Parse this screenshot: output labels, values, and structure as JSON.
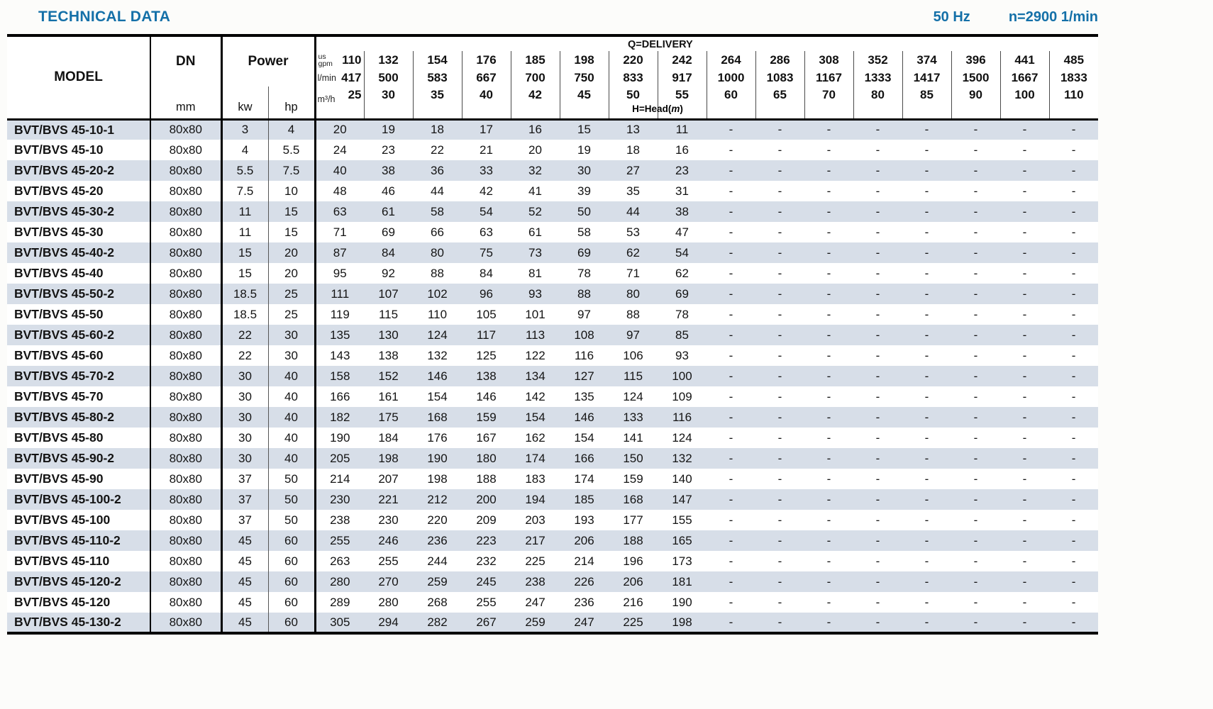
{
  "page": {
    "title": "TECHNICAL DATA",
    "frequency": "50 Hz",
    "speed": "n=2900 1/min"
  },
  "table": {
    "headers": {
      "model": "MODEL",
      "dn": "DN",
      "dn_unit": "mm",
      "power": "Power",
      "kw": "kw",
      "hp": "hp",
      "delivery": "Q=DELIVERY",
      "head_label": {
        "prefix": "H=Head(",
        "unit": "m",
        "suffix": ")"
      },
      "gpm_unit_lines": [
        "us",
        "gpm"
      ],
      "lmin_unit": "l/min",
      "m3h_unit": "m³/h",
      "gpm_values": [
        "110",
        "132",
        "154",
        "176",
        "185",
        "198",
        "220",
        "242",
        "264",
        "286",
        "308",
        "352",
        "374",
        "396",
        "441",
        "485"
      ],
      "lmin_values": [
        "417",
        "500",
        "583",
        "667",
        "700",
        "750",
        "833",
        "917",
        "1000",
        "1083",
        "1167",
        "1333",
        "1417",
        "1500",
        "1667",
        "1833"
      ],
      "m3h_values": [
        "25",
        "30",
        "35",
        "40",
        "42",
        "45",
        "50",
        "55",
        "60",
        "65",
        "70",
        "80",
        "85",
        "90",
        "100",
        "110"
      ]
    },
    "rows": [
      {
        "model": "BVT/BVS 45-10-1",
        "dn": "80x80",
        "kw": "3",
        "hp": "4",
        "values": [
          "20",
          "19",
          "18",
          "17",
          "16",
          "15",
          "13",
          "11",
          "-",
          "-",
          "-",
          "-",
          "-",
          "-",
          "-",
          "-"
        ]
      },
      {
        "model": "BVT/BVS 45-10",
        "dn": "80x80",
        "kw": "4",
        "hp": "5.5",
        "values": [
          "24",
          "23",
          "22",
          "21",
          "20",
          "19",
          "18",
          "16",
          "-",
          "-",
          "-",
          "-",
          "-",
          "-",
          "-",
          "-"
        ]
      },
      {
        "model": "BVT/BVS 45-20-2",
        "dn": "80x80",
        "kw": "5.5",
        "hp": "7.5",
        "values": [
          "40",
          "38",
          "36",
          "33",
          "32",
          "30",
          "27",
          "23",
          "-",
          "-",
          "-",
          "-",
          "-",
          "-",
          "-",
          "-"
        ]
      },
      {
        "model": "BVT/BVS 45-20",
        "dn": "80x80",
        "kw": "7.5",
        "hp": "10",
        "values": [
          "48",
          "46",
          "44",
          "42",
          "41",
          "39",
          "35",
          "31",
          "-",
          "-",
          "-",
          "-",
          "-",
          "-",
          "-",
          "-"
        ]
      },
      {
        "model": "BVT/BVS 45-30-2",
        "dn": "80x80",
        "kw": "11",
        "hp": "15",
        "values": [
          "63",
          "61",
          "58",
          "54",
          "52",
          "50",
          "44",
          "38",
          "-",
          "-",
          "-",
          "-",
          "-",
          "-",
          "-",
          "-"
        ]
      },
      {
        "model": "BVT/BVS 45-30",
        "dn": "80x80",
        "kw": "11",
        "hp": "15",
        "values": [
          "71",
          "69",
          "66",
          "63",
          "61",
          "58",
          "53",
          "47",
          "-",
          "-",
          "-",
          "-",
          "-",
          "-",
          "-",
          "-"
        ]
      },
      {
        "model": "BVT/BVS 45-40-2",
        "dn": "80x80",
        "kw": "15",
        "hp": "20",
        "values": [
          "87",
          "84",
          "80",
          "75",
          "73",
          "69",
          "62",
          "54",
          "-",
          "-",
          "-",
          "-",
          "-",
          "-",
          "-",
          "-"
        ]
      },
      {
        "model": "BVT/BVS 45-40",
        "dn": "80x80",
        "kw": "15",
        "hp": "20",
        "values": [
          "95",
          "92",
          "88",
          "84",
          "81",
          "78",
          "71",
          "62",
          "-",
          "-",
          "-",
          "-",
          "-",
          "-",
          "-",
          "-"
        ]
      },
      {
        "model": "BVT/BVS 45-50-2",
        "dn": "80x80",
        "kw": "18.5",
        "hp": "25",
        "values": [
          "111",
          "107",
          "102",
          "96",
          "93",
          "88",
          "80",
          "69",
          "-",
          "-",
          "-",
          "-",
          "-",
          "-",
          "-",
          "-"
        ]
      },
      {
        "model": "BVT/BVS 45-50",
        "dn": "80x80",
        "kw": "18.5",
        "hp": "25",
        "values": [
          "119",
          "115",
          "110",
          "105",
          "101",
          "97",
          "88",
          "78",
          "-",
          "-",
          "-",
          "-",
          "-",
          "-",
          "-",
          "-"
        ]
      },
      {
        "model": "BVT/BVS 45-60-2",
        "dn": "80x80",
        "kw": "22",
        "hp": "30",
        "values": [
          "135",
          "130",
          "124",
          "117",
          "113",
          "108",
          "97",
          "85",
          "-",
          "-",
          "-",
          "-",
          "-",
          "-",
          "-",
          "-"
        ]
      },
      {
        "model": "BVT/BVS 45-60",
        "dn": "80x80",
        "kw": "22",
        "hp": "30",
        "values": [
          "143",
          "138",
          "132",
          "125",
          "122",
          "116",
          "106",
          "93",
          "-",
          "-",
          "-",
          "-",
          "-",
          "-",
          "-",
          "-"
        ]
      },
      {
        "model": "BVT/BVS 45-70-2",
        "dn": "80x80",
        "kw": "30",
        "hp": "40",
        "values": [
          "158",
          "152",
          "146",
          "138",
          "134",
          "127",
          "115",
          "100",
          "-",
          "-",
          "-",
          "-",
          "-",
          "-",
          "-",
          "-"
        ]
      },
      {
        "model": "BVT/BVS 45-70",
        "dn": "80x80",
        "kw": "30",
        "hp": "40",
        "values": [
          "166",
          "161",
          "154",
          "146",
          "142",
          "135",
          "124",
          "109",
          "-",
          "-",
          "-",
          "-",
          "-",
          "-",
          "-",
          "-"
        ]
      },
      {
        "model": "BVT/BVS 45-80-2",
        "dn": "80x80",
        "kw": "30",
        "hp": "40",
        "values": [
          "182",
          "175",
          "168",
          "159",
          "154",
          "146",
          "133",
          "116",
          "-",
          "-",
          "-",
          "-",
          "-",
          "-",
          "-",
          "-"
        ]
      },
      {
        "model": "BVT/BVS 45-80",
        "dn": "80x80",
        "kw": "30",
        "hp": "40",
        "values": [
          "190",
          "184",
          "176",
          "167",
          "162",
          "154",
          "141",
          "124",
          "-",
          "-",
          "-",
          "-",
          "-",
          "-",
          "-",
          "-"
        ]
      },
      {
        "model": "BVT/BVS 45-90-2",
        "dn": "80x80",
        "kw": "30",
        "hp": "40",
        "values": [
          "205",
          "198",
          "190",
          "180",
          "174",
          "166",
          "150",
          "132",
          "-",
          "-",
          "-",
          "-",
          "-",
          "-",
          "-",
          "-"
        ]
      },
      {
        "model": "BVT/BVS 45-90",
        "dn": "80x80",
        "kw": "37",
        "hp": "50",
        "values": [
          "214",
          "207",
          "198",
          "188",
          "183",
          "174",
          "159",
          "140",
          "-",
          "-",
          "-",
          "-",
          "-",
          "-",
          "-",
          "-"
        ]
      },
      {
        "model": "BVT/BVS 45-100-2",
        "dn": "80x80",
        "kw": "37",
        "hp": "50",
        "values": [
          "230",
          "221",
          "212",
          "200",
          "194",
          "185",
          "168",
          "147",
          "-",
          "-",
          "-",
          "-",
          "-",
          "-",
          "-",
          "-"
        ]
      },
      {
        "model": "BVT/BVS 45-100",
        "dn": "80x80",
        "kw": "37",
        "hp": "50",
        "values": [
          "238",
          "230",
          "220",
          "209",
          "203",
          "193",
          "177",
          "155",
          "-",
          "-",
          "-",
          "-",
          "-",
          "-",
          "-",
          "-"
        ]
      },
      {
        "model": "BVT/BVS 45-110-2",
        "dn": "80x80",
        "kw": "45",
        "hp": "60",
        "values": [
          "255",
          "246",
          "236",
          "223",
          "217",
          "206",
          "188",
          "165",
          "-",
          "-",
          "-",
          "-",
          "-",
          "-",
          "-",
          "-"
        ]
      },
      {
        "model": "BVT/BVS 45-110",
        "dn": "80x80",
        "kw": "45",
        "hp": "60",
        "values": [
          "263",
          "255",
          "244",
          "232",
          "225",
          "214",
          "196",
          "173",
          "-",
          "-",
          "-",
          "-",
          "-",
          "-",
          "-",
          "-"
        ]
      },
      {
        "model": "BVT/BVS 45-120-2",
        "dn": "80x80",
        "kw": "45",
        "hp": "60",
        "values": [
          "280",
          "270",
          "259",
          "245",
          "238",
          "226",
          "206",
          "181",
          "-",
          "-",
          "-",
          "-",
          "-",
          "-",
          "-",
          "-"
        ]
      },
      {
        "model": "BVT/BVS 45-120",
        "dn": "80x80",
        "kw": "45",
        "hp": "60",
        "values": [
          "289",
          "280",
          "268",
          "255",
          "247",
          "236",
          "216",
          "190",
          "-",
          "-",
          "-",
          "-",
          "-",
          "-",
          "-",
          "-"
        ]
      },
      {
        "model": "BVT/BVS 45-130-2",
        "dn": "80x80",
        "kw": "45",
        "hp": "60",
        "values": [
          "305",
          "294",
          "282",
          "267",
          "259",
          "247",
          "225",
          "198",
          "-",
          "-",
          "-",
          "-",
          "-",
          "-",
          "-",
          "-"
        ]
      }
    ]
  }
}
